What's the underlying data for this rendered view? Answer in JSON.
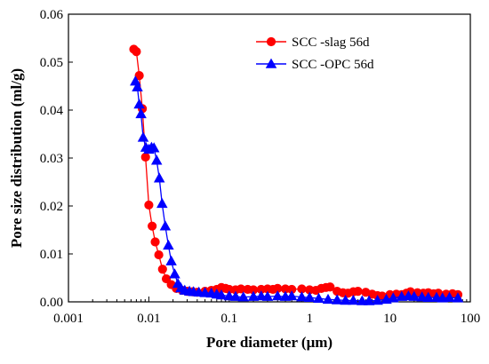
{
  "chart_data": {
    "type": "scatter",
    "title": "",
    "xlabel": "Pore diameter (μm)",
    "ylabel": "Pore size distribution (ml/g)",
    "x_scale": "log",
    "xlim": [
      0.001,
      100
    ],
    "ylim": [
      0,
      0.06
    ],
    "x_ticks": [
      "0.001",
      "0.01",
      "0.1",
      "1",
      "10",
      "100"
    ],
    "y_ticks": [
      "0.00",
      "0.01",
      "0.02",
      "0.03",
      "0.04",
      "0.05",
      "0.06"
    ],
    "grid": false,
    "legend_position": "top-right",
    "series": [
      {
        "name": "SCC -slag 56d",
        "color": "#ff0000",
        "marker": "circle",
        "points": [
          [
            0.0065,
            0.0527
          ],
          [
            0.007,
            0.0522
          ],
          [
            0.0076,
            0.0472
          ],
          [
            0.0083,
            0.0403
          ],
          [
            0.0091,
            0.0302
          ],
          [
            0.01,
            0.0202
          ],
          [
            0.011,
            0.0158
          ],
          [
            0.012,
            0.0125
          ],
          [
            0.0133,
            0.0098
          ],
          [
            0.0148,
            0.0068
          ],
          [
            0.0165,
            0.0048
          ],
          [
            0.019,
            0.0036
          ],
          [
            0.022,
            0.0028
          ],
          [
            0.026,
            0.0024
          ],
          [
            0.03,
            0.0022
          ],
          [
            0.035,
            0.0021
          ],
          [
            0.04,
            0.002
          ],
          [
            0.05,
            0.0022
          ],
          [
            0.06,
            0.0024
          ],
          [
            0.07,
            0.0026
          ],
          [
            0.08,
            0.003
          ],
          [
            0.09,
            0.0028
          ],
          [
            0.1,
            0.0026
          ],
          [
            0.12,
            0.0025
          ],
          [
            0.14,
            0.0027
          ],
          [
            0.17,
            0.0026
          ],
          [
            0.2,
            0.0025
          ],
          [
            0.25,
            0.0026
          ],
          [
            0.3,
            0.0027
          ],
          [
            0.35,
            0.0026
          ],
          [
            0.4,
            0.0028
          ],
          [
            0.5,
            0.0027
          ],
          [
            0.6,
            0.0026
          ],
          [
            0.8,
            0.0027
          ],
          [
            1.0,
            0.0025
          ],
          [
            1.2,
            0.0024
          ],
          [
            1.4,
            0.0028
          ],
          [
            1.6,
            0.003
          ],
          [
            1.8,
            0.0031
          ],
          [
            2.2,
            0.0022
          ],
          [
            2.6,
            0.0019
          ],
          [
            3.0,
            0.0018
          ],
          [
            3.5,
            0.0021
          ],
          [
            4.0,
            0.0022
          ],
          [
            5.0,
            0.002
          ],
          [
            6.0,
            0.0016
          ],
          [
            7.0,
            0.0013
          ],
          [
            8.0,
            0.0012
          ],
          [
            10.0,
            0.0015
          ],
          [
            12.0,
            0.0016
          ],
          [
            14.0,
            0.0015
          ],
          [
            16.0,
            0.0018
          ],
          [
            18.0,
            0.0021
          ],
          [
            22.0,
            0.0019
          ],
          [
            26.0,
            0.0018
          ],
          [
            30.0,
            0.0019
          ],
          [
            35.0,
            0.0017
          ],
          [
            40.0,
            0.0018
          ],
          [
            50.0,
            0.0016
          ],
          [
            60.0,
            0.0017
          ],
          [
            70.0,
            0.0015
          ]
        ]
      },
      {
        "name": "SCC -OPC 56d",
        "color": "#0000ff",
        "marker": "triangle",
        "points": [
          [
            0.0068,
            0.046
          ],
          [
            0.0072,
            0.0448
          ],
          [
            0.0076,
            0.0412
          ],
          [
            0.008,
            0.0392
          ],
          [
            0.0085,
            0.0343
          ],
          [
            0.0092,
            0.0322
          ],
          [
            0.01,
            0.0318
          ],
          [
            0.0108,
            0.0322
          ],
          [
            0.0116,
            0.0321
          ],
          [
            0.0125,
            0.0295
          ],
          [
            0.0135,
            0.0258
          ],
          [
            0.0146,
            0.0205
          ],
          [
            0.016,
            0.0158
          ],
          [
            0.0175,
            0.0118
          ],
          [
            0.019,
            0.0085
          ],
          [
            0.021,
            0.0058
          ],
          [
            0.023,
            0.0038
          ],
          [
            0.025,
            0.0029
          ],
          [
            0.028,
            0.0024
          ],
          [
            0.032,
            0.0022
          ],
          [
            0.036,
            0.0021
          ],
          [
            0.042,
            0.002
          ],
          [
            0.05,
            0.0019
          ],
          [
            0.06,
            0.0018
          ],
          [
            0.07,
            0.0016
          ],
          [
            0.08,
            0.0014
          ],
          [
            0.1,
            0.0012
          ],
          [
            0.12,
            0.0011
          ],
          [
            0.15,
            0.001
          ],
          [
            0.2,
            0.0011
          ],
          [
            0.25,
            0.0012
          ],
          [
            0.3,
            0.0011
          ],
          [
            0.4,
            0.0012
          ],
          [
            0.5,
            0.0011
          ],
          [
            0.6,
            0.0012
          ],
          [
            0.8,
            0.001
          ],
          [
            1.0,
            0.0009
          ],
          [
            1.3,
            0.0007
          ],
          [
            1.7,
            0.0005
          ],
          [
            2.2,
            0.0004
          ],
          [
            2.8,
            0.0003
          ],
          [
            3.5,
            0.0003
          ],
          [
            4.5,
            0.0002
          ],
          [
            5.5,
            0.0002
          ],
          [
            7.0,
            0.0003
          ],
          [
            9.0,
            0.0005
          ],
          [
            11.0,
            0.0008
          ],
          [
            14.0,
            0.0011
          ],
          [
            17.0,
            0.0012
          ],
          [
            20.0,
            0.0011
          ],
          [
            25.0,
            0.001
          ],
          [
            30.0,
            0.0009
          ],
          [
            38.0,
            0.0009
          ],
          [
            45.0,
            0.0008
          ],
          [
            55.0,
            0.0009
          ],
          [
            70.0,
            0.0008
          ]
        ]
      }
    ]
  }
}
